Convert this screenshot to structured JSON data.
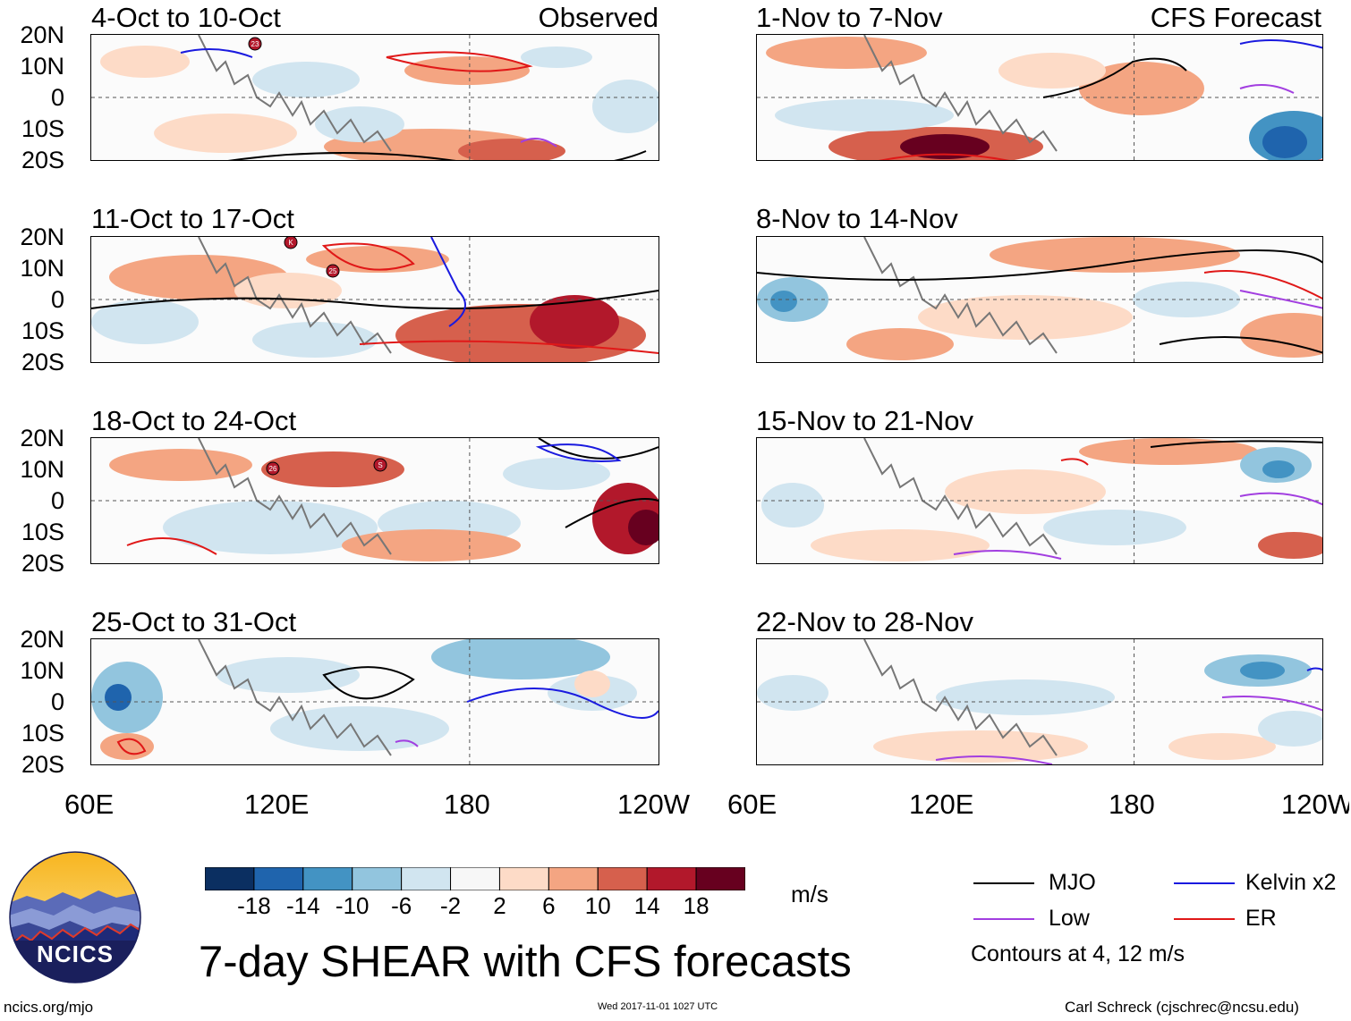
{
  "panels_left": [
    {
      "title": "4-Oct to 10-Oct",
      "tag": "Observed"
    },
    {
      "title": "11-Oct to 17-Oct",
      "tag": ""
    },
    {
      "title": "18-Oct to 24-Oct",
      "tag": ""
    },
    {
      "title": "25-Oct to 31-Oct",
      "tag": ""
    }
  ],
  "panels_right": [
    {
      "title": "1-Nov to 7-Nov",
      "tag": "CFS Forecast"
    },
    {
      "title": "8-Nov to 14-Nov",
      "tag": ""
    },
    {
      "title": "15-Nov to 21-Nov",
      "tag": ""
    },
    {
      "title": "22-Nov to 28-Nov",
      "tag": ""
    }
  ],
  "lat_labels": [
    "20N",
    "10N",
    "0",
    "10S",
    "20S"
  ],
  "lon_labels": [
    "60E",
    "120E",
    "180",
    "120W"
  ],
  "colorbar": {
    "colors": [
      "#0b2f61",
      "#1f64ad",
      "#4393c3",
      "#92c5de",
      "#d1e5f0",
      "#f7f7f7",
      "#fddbc7",
      "#f4a582",
      "#d6604d",
      "#b2182b",
      "#67001f"
    ],
    "labels": [
      "-18",
      "-14",
      "-10",
      "-6",
      "-2",
      "2",
      "6",
      "10",
      "14",
      "18"
    ],
    "units": "m/s"
  },
  "legend": {
    "items": [
      {
        "label": "MJO",
        "color": "#000000"
      },
      {
        "label": "Kelvin x2",
        "color": "#1a1adf"
      },
      {
        "label": "Low",
        "color": "#a23ee0"
      },
      {
        "label": "ER",
        "color": "#e01818"
      }
    ],
    "note": "Contours at 4, 12 m/s"
  },
  "storm_markers": [
    {
      "panel": 0,
      "label": "23"
    },
    {
      "panel": 1,
      "label": "K"
    },
    {
      "panel": 1,
      "label": "25"
    },
    {
      "panel": 2,
      "label": "26"
    },
    {
      "panel": 2,
      "label": "S"
    }
  ],
  "title": "7-day SHEAR with CFS forecasts",
  "logo_text": "NCICS",
  "footer": {
    "site": "ncics.org/mjo",
    "timestamp": "Wed 2017-11-01 1027 UTC",
    "author": "Carl Schreck (cjschrec@ncsu.edu)"
  }
}
